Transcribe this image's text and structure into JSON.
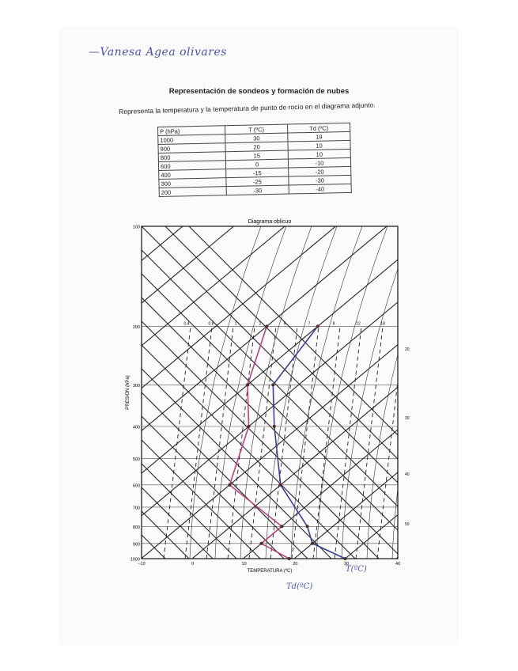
{
  "author": "—Vanesa Agea olivares",
  "title": "Representación de sondeos y formación de nubes",
  "subtitle": "Representa la temperatura y la temperatura de punto de rocío en el diagrama adjunto.",
  "table": {
    "headers": [
      "P (hPa)",
      "T (ºC)",
      "Td (ºC)"
    ],
    "rows": [
      [
        "1000",
        "30",
        "19"
      ],
      [
        "900",
        "20",
        "10"
      ],
      [
        "800",
        "15",
        "10"
      ],
      [
        "600",
        "0",
        "-10"
      ],
      [
        "400",
        "-15",
        "-20"
      ],
      [
        "300",
        "-25",
        "-30"
      ],
      [
        "200",
        "-30",
        "-40"
      ]
    ]
  },
  "chart_data": {
    "type": "line",
    "title": "Diagrama oblicuo",
    "xlabel": "TEMPERATURA (ºC)",
    "ylabel": "PRESIÓN (hPa)",
    "x_ticks": [
      "−10",
      "0",
      "10",
      "20",
      "30",
      "40"
    ],
    "y_ticks": [
      "100",
      "200",
      "300",
      "400",
      "500",
      "600",
      "700",
      "800",
      "900",
      "1000"
    ],
    "mixing_ratio_labels": [
      "0.4",
      "0.8",
      "1",
      "2",
      "5",
      "7",
      "8",
      "12",
      "18"
    ],
    "right_labels": [
      "20",
      "30",
      "40",
      "50"
    ],
    "series": [
      {
        "name": "T(ºC)",
        "color": "#3b3f96",
        "points": [
          [
            1000,
            30
          ],
          [
            900,
            20
          ],
          [
            800,
            15
          ],
          [
            600,
            0
          ],
          [
            400,
            -15
          ],
          [
            300,
            -25
          ],
          [
            200,
            -30
          ]
        ]
      },
      {
        "name": "Td(ºC)",
        "color": "#b8447e",
        "points": [
          [
            1000,
            19
          ],
          [
            900,
            10
          ],
          [
            800,
            10
          ],
          [
            600,
            -10
          ],
          [
            400,
            -20
          ],
          [
            300,
            -30
          ],
          [
            200,
            -40
          ]
        ]
      }
    ],
    "grid": true
  }
}
